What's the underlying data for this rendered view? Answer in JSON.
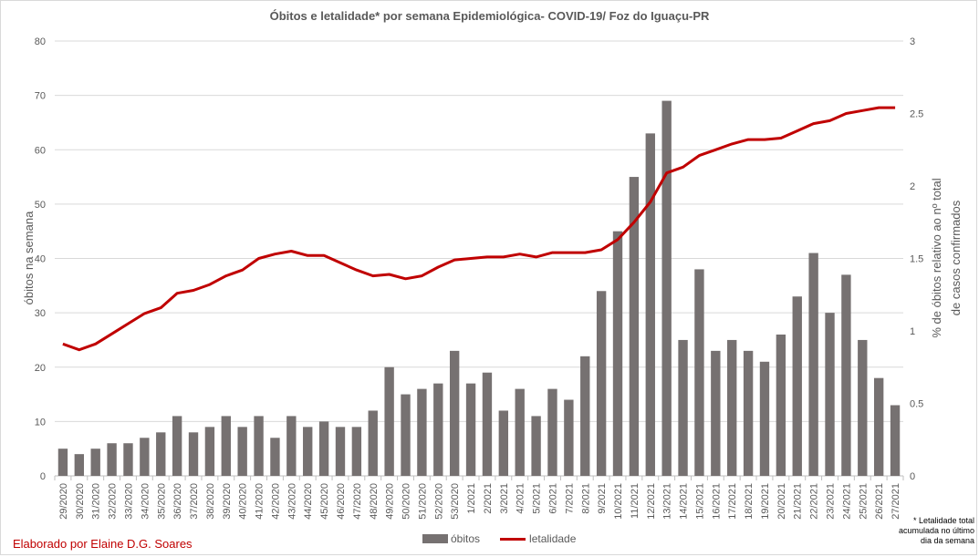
{
  "chart_data": {
    "type": "bar",
    "title": "Óbitos e letalidade*  por semana Epidemiológica- COVID-19/ Foz do Iguaçu-PR",
    "categories": [
      "29/2020",
      "30/2020",
      "31/2020",
      "32/2020",
      "33/2020",
      "34/2020",
      "35/2020",
      "36/2020",
      "37/2020",
      "38/2020",
      "39/2020",
      "40/2020",
      "41/2020",
      "42/2020",
      "43/2020",
      "44/2020",
      "45/2020",
      "46/2020",
      "47/2020",
      "48/2020",
      "49/2020",
      "50/2020",
      "51/2020",
      "52/2020",
      "53/2020",
      "1/2021",
      "2/2021",
      "3/2021",
      "4/2021",
      "5/2021",
      "6/2021",
      "7/2021",
      "8/2021",
      "9/2021",
      "10/2021",
      "11/2021",
      "12/2021",
      "13/2021",
      "14/2021",
      "15/2021",
      "16/2021",
      "17/2021",
      "18/2021",
      "19/2021",
      "20/2021",
      "21/2021",
      "22/2021",
      "23/2021",
      "24/2021",
      "25/2021",
      "26/2021",
      "27/2021"
    ],
    "series": [
      {
        "name": "óbitos",
        "type": "bar",
        "axis": "left",
        "color": "#767171",
        "values": [
          5,
          4,
          5,
          6,
          6,
          7,
          8,
          11,
          8,
          9,
          11,
          9,
          11,
          7,
          11,
          9,
          10,
          9,
          9,
          12,
          20,
          15,
          16,
          17,
          23,
          17,
          19,
          12,
          16,
          11,
          16,
          14,
          22,
          34,
          45,
          55,
          63,
          69,
          25,
          38,
          23,
          25,
          23,
          21,
          26,
          33,
          41,
          30,
          37,
          25,
          18,
          13
        ]
      },
      {
        "name": "letalidade",
        "type": "line",
        "axis": "right",
        "color": "#c00000",
        "values": [
          0.91,
          0.87,
          0.91,
          0.98,
          1.05,
          1.12,
          1.16,
          1.26,
          1.28,
          1.32,
          1.38,
          1.42,
          1.5,
          1.53,
          1.55,
          1.52,
          1.52,
          1.47,
          1.42,
          1.38,
          1.39,
          1.36,
          1.38,
          1.44,
          1.49,
          1.5,
          1.51,
          1.51,
          1.53,
          1.51,
          1.54,
          1.54,
          1.54,
          1.56,
          1.63,
          1.75,
          1.89,
          2.09,
          2.13,
          2.21,
          2.25,
          2.29,
          2.32,
          2.32,
          2.33,
          2.38,
          2.43,
          2.45,
          2.5,
          2.52,
          2.54,
          2.54
        ]
      }
    ],
    "ylabel": "óbitos na semana",
    "ylim": [
      0,
      80
    ],
    "yticks": [
      "0",
      "10",
      "20",
      "30",
      "40",
      "50",
      "60",
      "70",
      "80"
    ],
    "y2label_line1": "% de óbitos relativo ao nº total",
    "y2label_line2": "de casos confirmados",
    "y2lim": [
      0,
      3
    ],
    "y2ticks": [
      "0",
      "0.5",
      "1",
      "1.5",
      "2",
      "2.5",
      "3"
    ],
    "grid": true,
    "legend_position": "bottom"
  },
  "credit": "Elaborado por Elaine D.G. Soares",
  "footnote": "* Letalidade total acumulada no último dia da semana"
}
